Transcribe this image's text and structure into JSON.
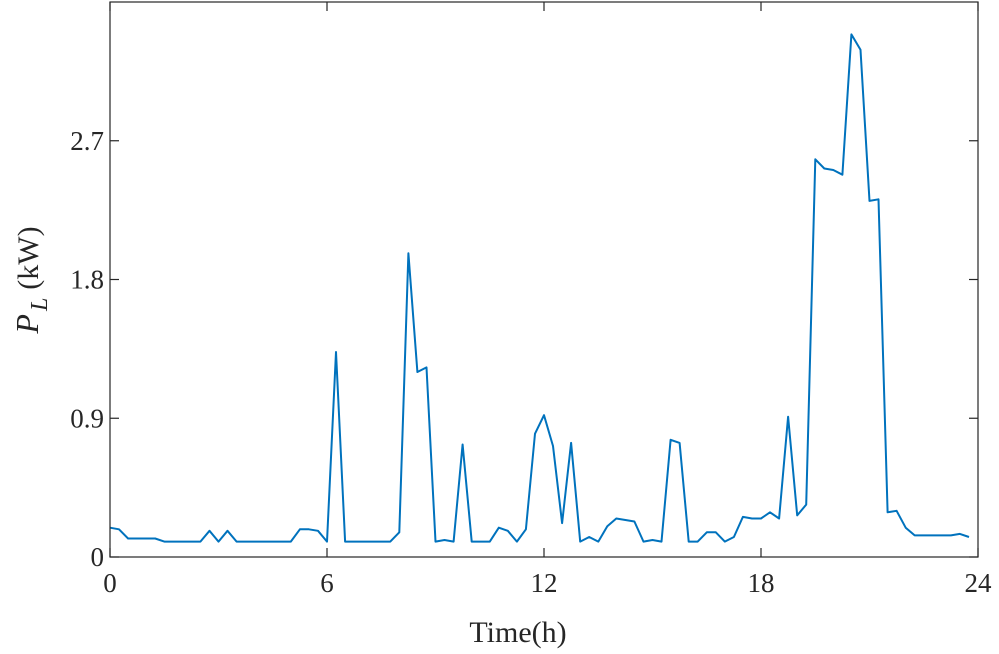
{
  "chart_data": {
    "type": "line",
    "title": "",
    "xlabel": "Time(h)",
    "ylabel": {
      "symbol": "P",
      "subscript": "L",
      "unit": "(kW)"
    },
    "xlim": [
      0,
      24
    ],
    "ylim": [
      0,
      3.6
    ],
    "xticks": [
      0,
      6,
      12,
      18,
      24
    ],
    "xtick_labels": [
      "0",
      "6",
      "12",
      "18",
      "24"
    ],
    "yticks": [
      0,
      0.9,
      1.8,
      2.7
    ],
    "ytick_labels": [
      "0",
      "0.9",
      "1.8",
      "2.7"
    ],
    "grid": false,
    "line_color": "#0072BD",
    "series": [
      {
        "x": [
          0,
          0.25,
          0.5,
          0.75,
          1,
          1.25,
          1.5,
          1.75,
          2,
          2.25,
          2.5,
          2.75,
          3,
          3.25,
          3.5,
          3.75,
          4,
          4.25,
          4.5,
          4.75,
          5,
          5.25,
          5.5,
          5.75,
          6,
          6.25,
          6.5,
          6.75,
          7,
          7.25,
          7.5,
          7.75,
          8,
          8.25,
          8.5,
          8.75,
          9,
          9.25,
          9.5,
          9.75,
          10,
          10.25,
          10.5,
          10.75,
          11,
          11.25,
          11.5,
          11.75,
          12,
          12.25,
          12.5,
          12.75,
          13,
          13.25,
          13.5,
          13.75,
          14,
          14.25,
          14.5,
          14.75,
          15,
          15.25,
          15.5,
          15.75,
          16,
          16.25,
          16.5,
          16.75,
          17,
          17.25,
          17.5,
          17.75,
          18,
          18.25,
          18.5,
          18.75,
          19,
          19.25,
          19.5,
          19.75,
          20,
          20.25,
          20.5,
          20.75,
          21,
          21.25,
          21.5,
          21.75,
          22,
          22.25,
          22.5,
          22.75,
          23,
          23.25,
          23.5,
          23.75
        ],
        "values": [
          0.19,
          0.18,
          0.12,
          0.12,
          0.12,
          0.12,
          0.1,
          0.1,
          0.1,
          0.1,
          0.1,
          0.17,
          0.1,
          0.17,
          0.1,
          0.1,
          0.1,
          0.1,
          0.1,
          0.1,
          0.1,
          0.18,
          0.18,
          0.17,
          0.1,
          1.33,
          0.1,
          0.1,
          0.1,
          0.1,
          0.1,
          0.1,
          0.16,
          1.97,
          1.2,
          1.23,
          0.1,
          0.11,
          0.1,
          0.73,
          0.1,
          0.1,
          0.1,
          0.19,
          0.17,
          0.1,
          0.18,
          0.8,
          0.92,
          0.72,
          0.22,
          0.74,
          0.1,
          0.13,
          0.1,
          0.2,
          0.25,
          0.24,
          0.23,
          0.1,
          0.11,
          0.1,
          0.76,
          0.74,
          0.1,
          0.1,
          0.16,
          0.16,
          0.1,
          0.13,
          0.26,
          0.25,
          0.25,
          0.29,
          0.25,
          0.91,
          0.27,
          0.34,
          2.58,
          2.52,
          2.51,
          2.48,
          3.39,
          3.29,
          2.31,
          2.32,
          0.29,
          0.3,
          0.19,
          0.14,
          0.14,
          0.14,
          0.14,
          0.14,
          0.15,
          0.13
        ]
      }
    ]
  }
}
